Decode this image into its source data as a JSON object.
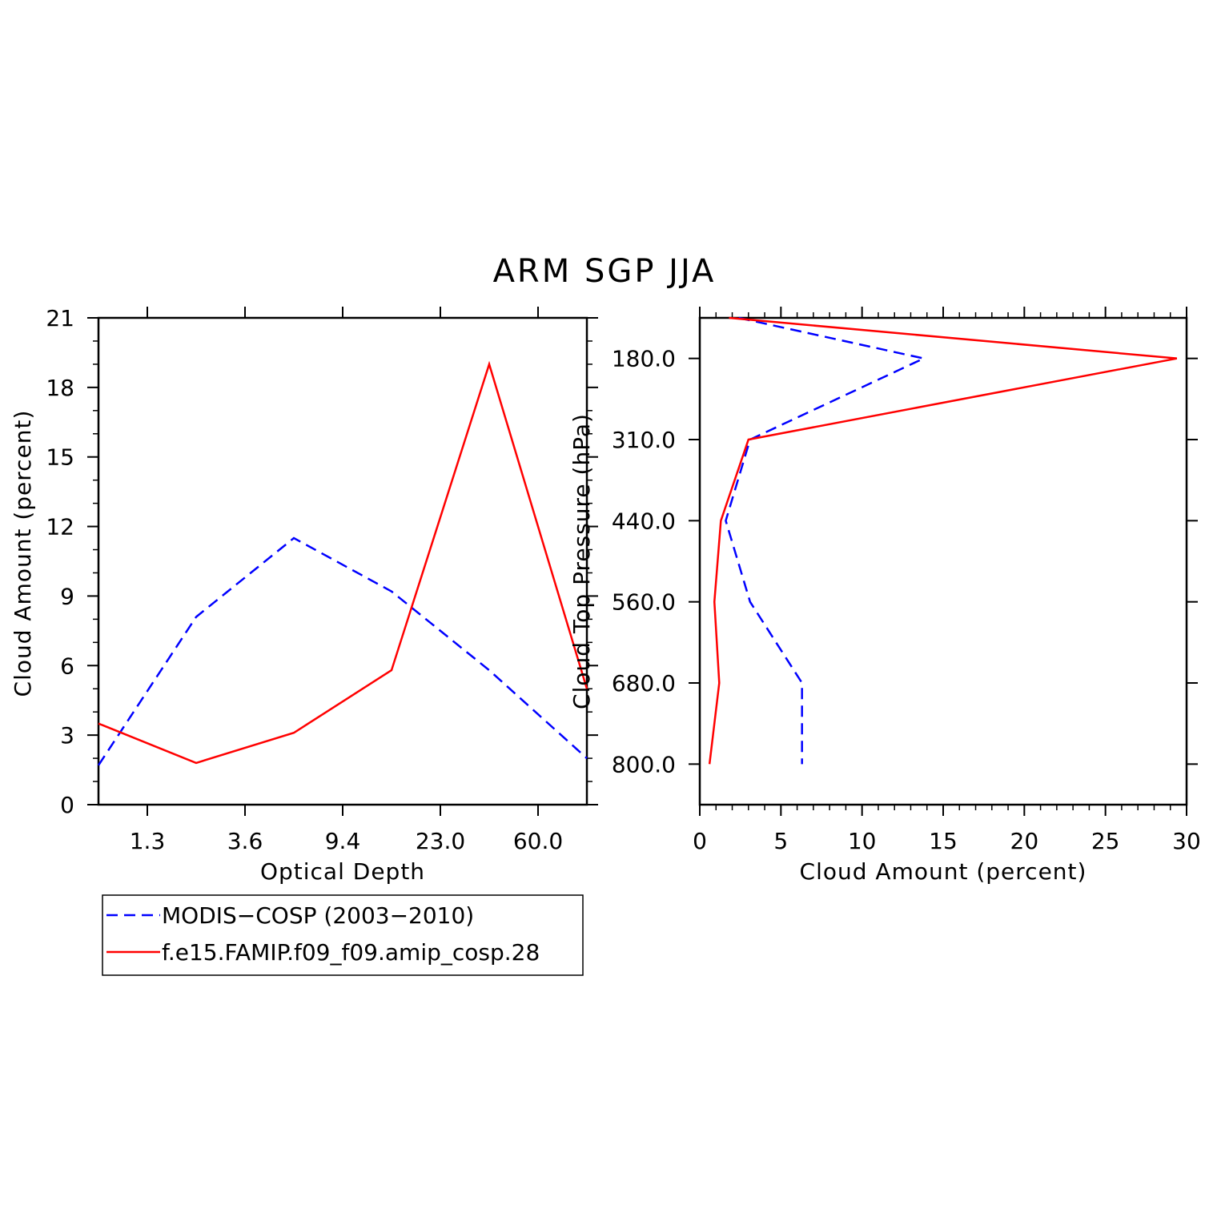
{
  "title": "ARM SGP JJA",
  "colors": {
    "modis": "#0000ff",
    "model": "#ff0000",
    "axis": "#000000"
  },
  "legend": {
    "entries": [
      {
        "label": "MODIS−COSP (2003−2010)",
        "series": "modis",
        "dash": true
      },
      {
        "label": "f.e15.FAMIP.f09_f09.amip_cosp.28",
        "series": "model",
        "dash": false
      }
    ]
  },
  "chart_data": [
    {
      "type": "line",
      "title": "ARM SGP JJA",
      "xlabel": "Optical Depth",
      "ylabel": "Cloud Amount (percent)",
      "x": [
        0,
        1,
        2,
        3,
        4,
        5
      ],
      "xlim": [
        0,
        5
      ],
      "x_tick_positions": [
        0.5,
        1.5,
        2.5,
        3.5,
        4.5
      ],
      "x_tick_labels": [
        "1.3",
        "3.6",
        "9.4",
        "23.0",
        "60.0"
      ],
      "ylim": [
        0,
        21
      ],
      "y_ticks": [
        0,
        3,
        6,
        9,
        12,
        15,
        18,
        21
      ],
      "y_tick_labels": [
        "0",
        "3",
        "6",
        "9",
        "12",
        "15",
        "18",
        "21"
      ],
      "series": [
        {
          "name": "MODIS−COSP (2003−2010)",
          "key": "modis",
          "values": [
            1.7,
            8.1,
            11.5,
            9.2,
            5.8,
            2.0
          ]
        },
        {
          "name": "f.e15.FAMIP.f09_f09.amip_cosp.28",
          "key": "model",
          "values": [
            3.5,
            1.8,
            3.1,
            5.8,
            19.0,
            5.0
          ]
        }
      ]
    },
    {
      "type": "line",
      "xlabel": "Cloud Amount (percent)",
      "ylabel": "Cloud Top Pressure (hPa)",
      "xlim": [
        0,
        30
      ],
      "x_ticks": [
        0,
        5,
        10,
        15,
        20,
        25,
        30
      ],
      "x_tick_labels": [
        "0",
        "5",
        "10",
        "15",
        "20",
        "25",
        "30"
      ],
      "level_index": [
        0,
        0.5,
        1.5,
        2.5,
        3.5,
        4.5,
        5.5,
        6.5,
        6
      ],
      "ylim_index": [
        0,
        6
      ],
      "y_tick_positions": [
        0.5,
        1.5,
        2.5,
        3.5,
        4.5,
        5.5
      ],
      "y_tick_labels": [
        "180.0",
        "310.0",
        "440.0",
        "560.0",
        "680.0",
        "800.0"
      ],
      "series": [
        {
          "name": "MODIS−COSP (2003−2010)",
          "key": "modis",
          "levels": [
            0,
            1,
            2,
            3,
            4,
            5,
            6
          ],
          "values": [
            2.4,
            13.8,
            3.1,
            1.6,
            3.1,
            6.3,
            6.3
          ]
        },
        {
          "name": "f.e15.FAMIP.f09_f09.amip_cosp.28",
          "key": "model",
          "levels": [
            0,
            1,
            2,
            3,
            4,
            5,
            6
          ],
          "values": [
            1.8,
            29.4,
            3.0,
            1.3,
            0.9,
            1.2,
            0.6
          ]
        }
      ]
    }
  ]
}
